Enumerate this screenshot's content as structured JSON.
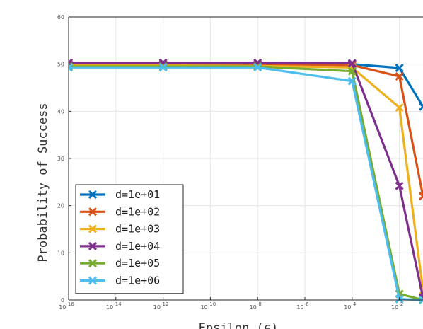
{
  "chart_data": {
    "type": "line",
    "xlabel": "Epsilon (ϵ)",
    "ylabel": "Probability of Success",
    "xscale": "log",
    "xlim_exponent": [
      -16,
      -1
    ],
    "ylim": [
      0,
      60
    ],
    "grid": true,
    "legend_position": "bottom-left",
    "x_tick_base": "10",
    "x_tick_exponents": [
      "-16",
      "-14",
      "-12",
      "-10",
      "-8",
      "-6",
      "-4",
      "-2"
    ],
    "y_ticks": [
      "0",
      "10",
      "20",
      "30",
      "40",
      "50",
      "60"
    ],
    "x_exponents": [
      -16,
      -12,
      -8,
      -4,
      -2,
      -1
    ],
    "series": [
      {
        "name": "d=1e+01",
        "color": "#0072BD",
        "values": [
          50,
          50,
          50,
          50,
          49.2,
          41
        ]
      },
      {
        "name": "d=1e+02",
        "color": "#D95319",
        "values": [
          50,
          50,
          50,
          49.8,
          47.4,
          22
        ]
      },
      {
        "name": "d=1e+03",
        "color": "#EDB120",
        "values": [
          49.7,
          49.7,
          49.6,
          49.3,
          40.8,
          2
        ]
      },
      {
        "name": "d=1e+04",
        "color": "#7E2F8E",
        "values": [
          50.3,
          50.3,
          50.3,
          50.2,
          24.2,
          0.5
        ]
      },
      {
        "name": "d=1e+05",
        "color": "#77AC30",
        "values": [
          49.5,
          49.5,
          49.5,
          48.5,
          1.3,
          0
        ]
      },
      {
        "name": "d=1e+06",
        "color": "#4DBEEE",
        "values": [
          49.3,
          49.3,
          49.3,
          46.4,
          0.2,
          0
        ]
      }
    ]
  }
}
